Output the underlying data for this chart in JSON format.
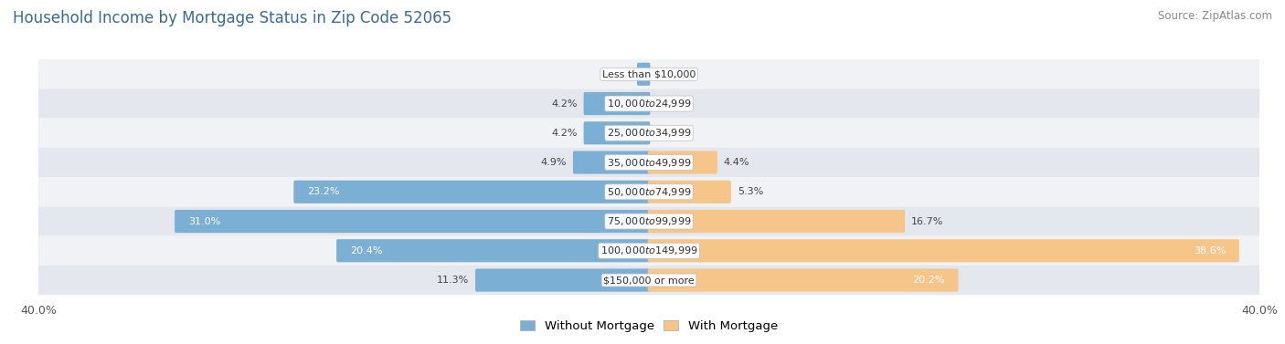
{
  "title": "Household Income by Mortgage Status in Zip Code 52065",
  "source": "Source: ZipAtlas.com",
  "categories": [
    "Less than $10,000",
    "$10,000 to $24,999",
    "$25,000 to $34,999",
    "$35,000 to $49,999",
    "$50,000 to $74,999",
    "$75,000 to $99,999",
    "$100,000 to $149,999",
    "$150,000 or more"
  ],
  "without_mortgage": [
    0.7,
    4.2,
    4.2,
    4.9,
    23.2,
    31.0,
    20.4,
    11.3
  ],
  "with_mortgage": [
    0.0,
    0.0,
    0.0,
    4.4,
    5.3,
    16.7,
    38.6,
    20.2
  ],
  "without_color": "#7bafd4",
  "with_color": "#f5c589",
  "axis_limit": 40.0,
  "bar_height": 0.62,
  "title_fontsize": 12,
  "source_fontsize": 8.5,
  "legend_fontsize": 9.5,
  "category_fontsize": 8,
  "value_fontsize": 8
}
